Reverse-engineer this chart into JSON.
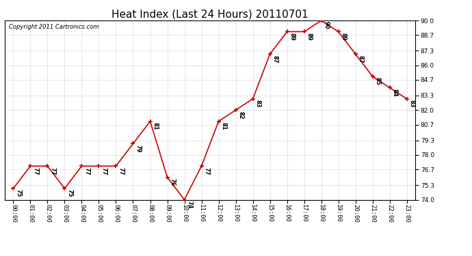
{
  "title": "Heat Index (Last 24 Hours) 20110701",
  "copyright": "Copyright 2011 Cartronics.com",
  "hours": [
    "00:00",
    "01:00",
    "02:00",
    "03:00",
    "04:00",
    "05:00",
    "06:00",
    "07:00",
    "08:00",
    "09:00",
    "10:00",
    "11:00",
    "12:00",
    "13:00",
    "14:00",
    "15:00",
    "16:00",
    "17:00",
    "18:00",
    "19:00",
    "20:00",
    "21:00",
    "22:00",
    "23:00"
  ],
  "values": [
    75,
    77,
    77,
    75,
    77,
    77,
    77,
    79,
    81,
    76,
    74,
    77,
    81,
    82,
    83,
    87,
    89,
    89,
    90,
    89,
    87,
    85,
    84,
    83
  ],
  "ylim": [
    74.0,
    90.0
  ],
  "yticks": [
    74.0,
    75.3,
    76.7,
    78.0,
    79.3,
    80.7,
    82.0,
    83.3,
    84.7,
    86.0,
    87.3,
    88.7,
    90.0
  ],
  "line_color": "#cc0000",
  "marker_color": "#cc0000",
  "bg_color": "#ffffff",
  "plot_bg_color": "#ffffff",
  "grid_color": "#cccccc",
  "title_fontsize": 11,
  "label_fontsize": 6,
  "tick_fontsize": 6.5,
  "copyright_fontsize": 6
}
